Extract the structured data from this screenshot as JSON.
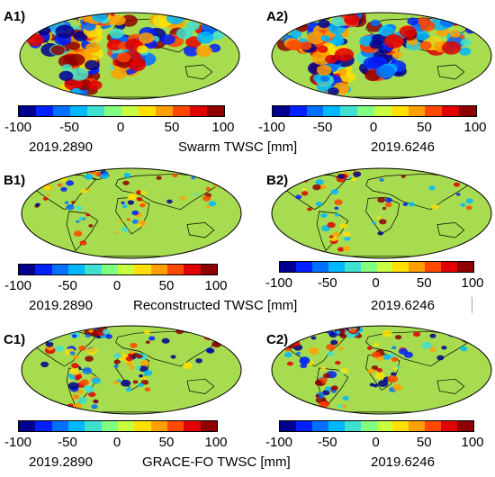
{
  "colors": [
    "#00008f",
    "#0020ff",
    "#0070ff",
    "#00b8ff",
    "#40e0d0",
    "#80ff80",
    "#c8ff40",
    "#ffe000",
    "#ffa000",
    "#ff4800",
    "#e00000",
    "#8f0000"
  ],
  "land_color": "#a8dc50",
  "ocean_color": "#ffffff",
  "rows": [
    {
      "caption": "Swarm TWSC [mm]",
      "panels": [
        {
          "label": "A1)",
          "date": "2019.2890",
          "ticks": [
            "-100",
            "-50",
            "0",
            "50",
            "100"
          ]
        },
        {
          "label": "A2)",
          "date": "2019.6246",
          "ticks": [
            "-100",
            "-50",
            "0",
            "50",
            "100"
          ]
        }
      ]
    },
    {
      "caption": "Reconstructed TWSC [mm]",
      "panels": [
        {
          "label": "B1)",
          "date": "2019.2890",
          "ticks": [
            "-100",
            "-50",
            "0",
            "50",
            "100"
          ]
        },
        {
          "label": "B2)",
          "date": "2019.6246",
          "ticks": [
            "-100",
            "-50",
            "0",
            "50",
            "100"
          ]
        }
      ]
    },
    {
      "caption": "GRACE-FO TWSC [mm]",
      "panels": [
        {
          "label": "C1)",
          "date": "2019.2890",
          "ticks": [
            "-100",
            "-50",
            "0",
            "50",
            "100"
          ]
        },
        {
          "label": "C2)",
          "date": "2019.6246",
          "ticks": [
            "-100",
            "-50",
            "0",
            "50",
            "100"
          ]
        }
      ]
    }
  ]
}
